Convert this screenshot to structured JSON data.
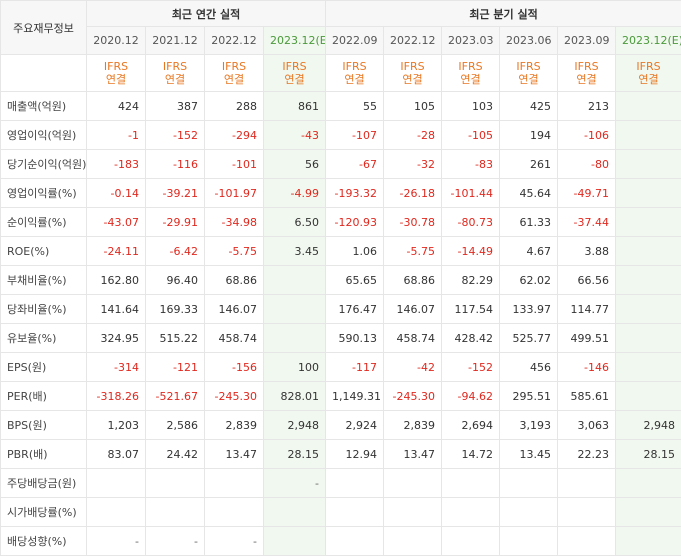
{
  "header": {
    "label": "주요재무정보",
    "annual_title": "최근 연간 실적",
    "quarter_title": "최근 분기 실적"
  },
  "periods": [
    {
      "label": "2020.12",
      "est": false
    },
    {
      "label": "2021.12",
      "est": false
    },
    {
      "label": "2022.12",
      "est": false
    },
    {
      "label": "2023.12(E)",
      "est": true
    },
    {
      "label": "2022.09",
      "est": false
    },
    {
      "label": "2022.12",
      "est": false
    },
    {
      "label": "2023.03",
      "est": false
    },
    {
      "label": "2023.06",
      "est": false
    },
    {
      "label": "2023.09",
      "est": false
    },
    {
      "label": "2023.12(E)",
      "est": true
    }
  ],
  "ifrs": {
    "line1": "IFRS",
    "line2": "연결"
  },
  "rows": [
    {
      "label": "매출액(억원)",
      "values": [
        "424",
        "387",
        "288",
        "861",
        "55",
        "105",
        "103",
        "425",
        "213",
        ""
      ]
    },
    {
      "label": "영업이익(억원)",
      "values": [
        "-1",
        "-152",
        "-294",
        "-43",
        "-107",
        "-28",
        "-105",
        "194",
        "-106",
        ""
      ]
    },
    {
      "label": "당기순이익(억원)",
      "values": [
        "-183",
        "-116",
        "-101",
        "56",
        "-67",
        "-32",
        "-83",
        "261",
        "-80",
        ""
      ]
    },
    {
      "label": "영업이익률(%)",
      "values": [
        "-0.14",
        "-39.21",
        "-101.97",
        "-4.99",
        "-193.32",
        "-26.18",
        "-101.44",
        "45.64",
        "-49.71",
        ""
      ]
    },
    {
      "label": "순이익률(%)",
      "values": [
        "-43.07",
        "-29.91",
        "-34.98",
        "6.50",
        "-120.93",
        "-30.78",
        "-80.73",
        "61.33",
        "-37.44",
        ""
      ]
    },
    {
      "label": "ROE(%)",
      "values": [
        "-24.11",
        "-6.42",
        "-5.75",
        "3.45",
        "1.06",
        "-5.75",
        "-14.49",
        "4.67",
        "3.88",
        ""
      ]
    },
    {
      "label": "부채비율(%)",
      "values": [
        "162.80",
        "96.40",
        "68.86",
        "",
        "65.65",
        "68.86",
        "82.29",
        "62.02",
        "66.56",
        ""
      ]
    },
    {
      "label": "당좌비율(%)",
      "values": [
        "141.64",
        "169.33",
        "146.07",
        "",
        "176.47",
        "146.07",
        "117.54",
        "133.97",
        "114.77",
        ""
      ]
    },
    {
      "label": "유보율(%)",
      "values": [
        "324.95",
        "515.22",
        "458.74",
        "",
        "590.13",
        "458.74",
        "428.42",
        "525.77",
        "499.51",
        ""
      ]
    },
    {
      "label": "EPS(원)",
      "values": [
        "-314",
        "-121",
        "-156",
        "100",
        "-117",
        "-42",
        "-152",
        "456",
        "-146",
        ""
      ]
    },
    {
      "label": "PER(배)",
      "values": [
        "-318.26",
        "-521.67",
        "-245.30",
        "828.01",
        "1,149.31",
        "-245.30",
        "-94.62",
        "295.51",
        "585.61",
        ""
      ]
    },
    {
      "label": "BPS(원)",
      "values": [
        "1,203",
        "2,586",
        "2,839",
        "2,948",
        "2,924",
        "2,839",
        "2,694",
        "3,193",
        "3,063",
        "2,948"
      ]
    },
    {
      "label": "PBR(배)",
      "values": [
        "83.07",
        "24.42",
        "13.47",
        "28.15",
        "12.94",
        "13.47",
        "14.72",
        "13.45",
        "22.23",
        "28.15"
      ]
    },
    {
      "label": "주당배당금(원)",
      "values": [
        "",
        "",
        "",
        "-",
        "",
        "",
        "",
        "",
        "",
        ""
      ]
    },
    {
      "label": "시가배당률(%)",
      "values": [
        "",
        "",
        "",
        "",
        "",
        "",
        "",
        "",
        "",
        ""
      ]
    },
    {
      "label": "배당성향(%)",
      "values": [
        "-",
        "-",
        "-",
        "",
        "",
        "",
        "",
        "",
        "",
        ""
      ]
    }
  ]
}
